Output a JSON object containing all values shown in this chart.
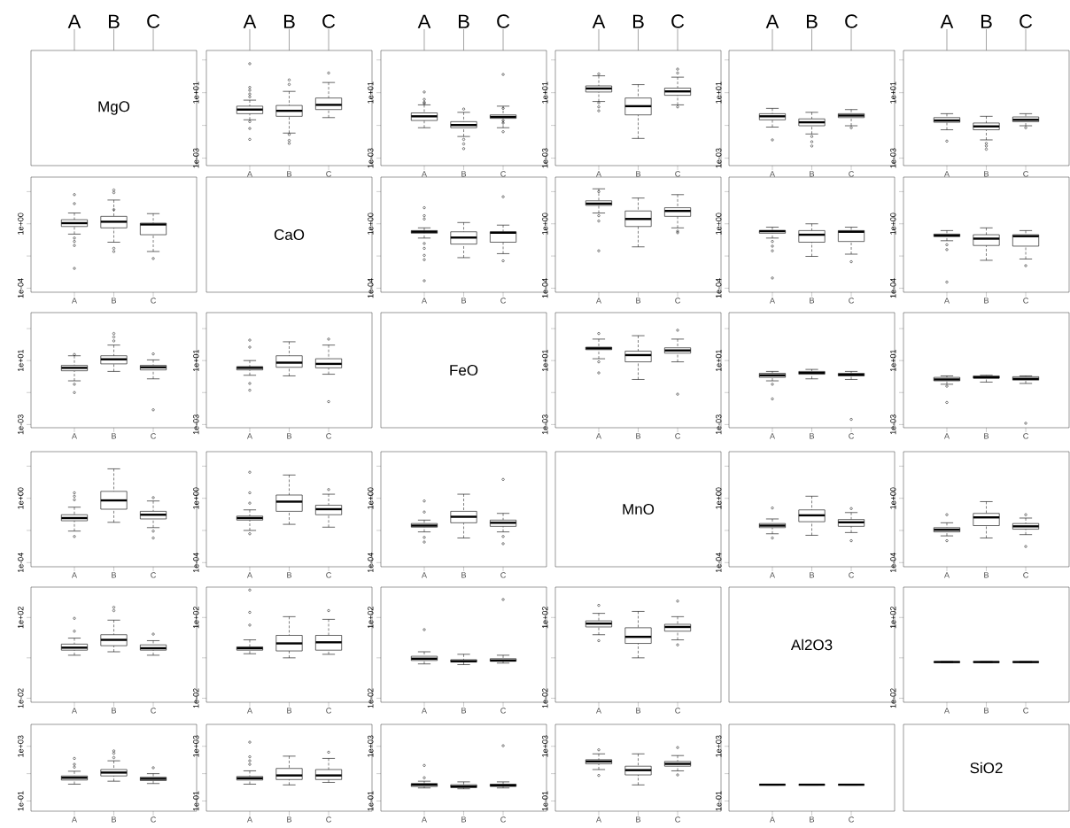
{
  "chart_data": [
    {
      "type": "other",
      "title": "MgO",
      "annotations": [
        "A",
        "B",
        "C"
      ]
    },
    {
      "type": "box",
      "log": true,
      "categories": [
        "A",
        "B",
        "C"
      ],
      "ylim": [
        0.00035,
        3800
      ],
      "yticks": [
        {
          "value": 1000,
          "label": null
        },
        {
          "value": 10,
          "label": "1e+01"
        },
        {
          "value": 0.1,
          "label": null
        },
        {
          "value": 0.001,
          "label": "1e-03"
        }
      ],
      "annotations": [
        "A",
        "B",
        "C"
      ],
      "boxes": [
        {
          "low": 0.22,
          "q1": 0.52,
          "median": 0.93,
          "q3": 1.5,
          "high": 3.5,
          "outliers": [
            590,
            21,
            14,
            8.3,
            5.6,
            0.17,
            0.065,
            0.014
          ]
        },
        {
          "low": 0.034,
          "q1": 0.36,
          "median": 0.78,
          "q3": 1.66,
          "high": 12,
          "outliers": [
            60,
            32,
            0.028,
            0.012,
            0.008
          ]
        },
        {
          "low": 0.3,
          "q1": 0.93,
          "median": 1.8,
          "q3": 4.7,
          "high": 42,
          "outliers": [
            160
          ]
        }
      ]
    },
    {
      "type": "box",
      "log": true,
      "categories": [
        "A",
        "B",
        "C"
      ],
      "ylim": [
        0.00035,
        3800
      ],
      "yticks": [
        {
          "value": 1000,
          "label": null
        },
        {
          "value": 10,
          "label": "1e+01"
        },
        {
          "value": 0.1,
          "label": null
        },
        {
          "value": 0.001,
          "label": "1e-03"
        }
      ],
      "annotations": [
        "A",
        "B",
        "C"
      ],
      "boxes": [
        {
          "low": 0.072,
          "q1": 0.2,
          "median": 0.36,
          "q3": 0.58,
          "high": 1.8,
          "outliers": [
            11,
            3.9,
            2.6,
            2.2
          ]
        },
        {
          "low": 0.021,
          "q1": 0.072,
          "median": 0.105,
          "q3": 0.17,
          "high": 0.63,
          "outliers": [
            1,
            0.014,
            0.0074,
            0.0038
          ]
        },
        {
          "low": 0.072,
          "q1": 0.27,
          "median": 0.33,
          "q3": 0.44,
          "high": 1.5,
          "outliers": [
            130,
            1.1,
            0.2,
            0.14,
            0.041
          ]
        }
      ]
    },
    {
      "type": "box",
      "log": true,
      "categories": [
        "A",
        "B",
        "C"
      ],
      "ylim": [
        0.00035,
        3800
      ],
      "yticks": [
        {
          "value": 1000,
          "label": null
        },
        {
          "value": 10,
          "label": "1e+01"
        },
        {
          "value": 0.1,
          "label": null
        },
        {
          "value": 0.001,
          "label": "1e-03"
        }
      ],
      "annotations": [
        "A",
        "B",
        "C"
      ],
      "boxes": [
        {
          "low": 2.9,
          "q1": 11,
          "median": 18,
          "q3": 26,
          "high": 107,
          "outliers": [
            140,
            2.4,
            1.35,
            0.78
          ]
        },
        {
          "low": 0.016,
          "q1": 0.44,
          "median": 1.5,
          "q3": 4.7,
          "high": 31
        },
        {
          "low": 1.8,
          "q1": 6.9,
          "median": 12,
          "q3": 19,
          "high": 89,
          "outliers": [
            275,
            160,
            1.35
          ]
        }
      ]
    },
    {
      "type": "box",
      "log": true,
      "categories": [
        "A",
        "B",
        "C"
      ],
      "ylim": [
        0.00035,
        3800
      ],
      "yticks": [
        {
          "value": 1000,
          "label": null
        },
        {
          "value": 10,
          "label": "1e+01"
        },
        {
          "value": 0.1,
          "label": null
        },
        {
          "value": 0.001,
          "label": "1e-03"
        }
      ],
      "annotations": [
        "A",
        "B",
        "C"
      ],
      "boxes": [
        {
          "low": 0.079,
          "q1": 0.22,
          "median": 0.36,
          "q3": 0.52,
          "high": 1.1,
          "outliers": [
            0.013
          ]
        },
        {
          "low": 0.03,
          "q1": 0.095,
          "median": 0.155,
          "q3": 0.25,
          "high": 0.63,
          "outliers": [
            0.021,
            0.01,
            0.0055
          ]
        },
        {
          "low": 0.095,
          "q1": 0.3,
          "median": 0.4,
          "q3": 0.52,
          "high": 0.93,
          "outliers": [
            0.072
          ]
        }
      ]
    },
    {
      "type": "box",
      "log": true,
      "categories": [
        "A",
        "B",
        "C"
      ],
      "ylim": [
        0.00035,
        3800
      ],
      "yticks": [
        {
          "value": 1000,
          "label": null
        },
        {
          "value": 10,
          "label": "1e+01"
        },
        {
          "value": 0.1,
          "label": null
        },
        {
          "value": 0.001,
          "label": "1e-03"
        }
      ],
      "annotations": [
        "A",
        "B",
        "C"
      ],
      "boxes": [
        {
          "low": 0.054,
          "q1": 0.155,
          "median": 0.2,
          "q3": 0.3,
          "high": 0.52,
          "outliers": [
            0.011
          ]
        },
        {
          "low": 0.013,
          "q1": 0.054,
          "median": 0.087,
          "q3": 0.14,
          "high": 0.36,
          "outliers": [
            0.008,
            0.0055,
            0.0035
          ]
        },
        {
          "low": 0.095,
          "q1": 0.17,
          "median": 0.22,
          "q3": 0.33,
          "high": 0.52,
          "outliers": [
            0.072
          ]
        }
      ]
    },
    {
      "type": "box",
      "log": true,
      "categories": [
        "A",
        "B",
        "C"
      ],
      "ylim": [
        5.6e-05,
        800
      ],
      "yticks": [
        {
          "value": 100,
          "label": null
        },
        {
          "value": 1,
          "label": "1e+00"
        },
        {
          "value": 0.01,
          "label": null
        },
        {
          "value": 0.0001,
          "label": "1e-04"
        }
      ],
      "boxes": [
        {
          "low": 0.23,
          "q1": 0.68,
          "median": 1.1,
          "q3": 1.8,
          "high": 4.7,
          "outliers": [
            65,
            18,
            0.13,
            0.08,
            0.045,
            0.0017
          ]
        },
        {
          "low": 0.072,
          "q1": 0.56,
          "median": 1.35,
          "q3": 2.9,
          "high": 30,
          "outliers": [
            126,
            87,
            7.6,
            0.03,
            0.019
          ]
        },
        {
          "low": 0.019,
          "q1": 0.21,
          "median": 0.91,
          "q3": 1.1,
          "high": 4.3,
          "outliers": [
            0.007
          ]
        }
      ]
    },
    {
      "type": "other",
      "title": "CaO"
    },
    {
      "type": "box",
      "log": true,
      "categories": [
        "A",
        "B",
        "C"
      ],
      "ylim": [
        5.6e-05,
        800
      ],
      "yticks": [
        {
          "value": 100,
          "label": null
        },
        {
          "value": 1,
          "label": "1e+00"
        },
        {
          "value": 0.01,
          "label": null
        },
        {
          "value": 0.0001,
          "label": "1e-04"
        }
      ],
      "boxes": [
        {
          "low": 0.13,
          "q1": 0.26,
          "median": 0.32,
          "q3": 0.38,
          "high": 0.56,
          "outliers": [
            10,
            3.2,
            2,
            0.06,
            0.03,
            0.011,
            0.0059,
            0.00029
          ]
        },
        {
          "low": 0.0079,
          "q1": 0.055,
          "median": 0.14,
          "q3": 0.32,
          "high": 1.2
        },
        {
          "low": 0.014,
          "q1": 0.072,
          "median": 0.28,
          "q3": 0.32,
          "high": 0.83,
          "outliers": [
            48,
            0.005
          ]
        }
      ]
    },
    {
      "type": "box",
      "log": true,
      "categories": [
        "A",
        "B",
        "C"
      ],
      "ylim": [
        5.6e-05,
        800
      ],
      "yticks": [
        {
          "value": 100,
          "label": null
        },
        {
          "value": 1,
          "label": "1e+00"
        },
        {
          "value": 0.01,
          "label": null
        },
        {
          "value": 0.0001,
          "label": "1e-04"
        }
      ],
      "boxes": [
        {
          "low": 4.7,
          "q1": 14,
          "median": 18,
          "q3": 27,
          "high": 150,
          "outliers": [
            100,
            3.2,
            1.5,
            0.021
          ]
        },
        {
          "low": 0.037,
          "q1": 0.68,
          "median": 2,
          "q3": 6.3,
          "high": 40
        },
        {
          "low": 0.56,
          "q1": 2.9,
          "median": 6.3,
          "q3": 10,
          "high": 65,
          "outliers": [
            0.35,
            0.28
          ]
        }
      ]
    },
    {
      "type": "box",
      "log": true,
      "categories": [
        "A",
        "B",
        "C"
      ],
      "ylim": [
        5.6e-05,
        800
      ],
      "yticks": [
        {
          "value": 100,
          "label": null
        },
        {
          "value": 1,
          "label": "1e+00"
        },
        {
          "value": 0.01,
          "label": null
        },
        {
          "value": 0.0001,
          "label": "1e-04"
        }
      ],
      "boxes": [
        {
          "low": 0.13,
          "q1": 0.26,
          "median": 0.35,
          "q3": 0.38,
          "high": 0.62,
          "outliers": [
            0.08,
            0.041,
            0.021,
            0.00043
          ]
        },
        {
          "low": 0.0095,
          "q1": 0.072,
          "median": 0.21,
          "q3": 0.38,
          "high": 1
        },
        {
          "low": 0.013,
          "q1": 0.08,
          "median": 0.32,
          "q3": 0.38,
          "high": 0.62,
          "outliers": [
            0.0044
          ]
        }
      ]
    },
    {
      "type": "box",
      "log": true,
      "categories": [
        "A",
        "B",
        "C"
      ],
      "ylim": [
        5.6e-05,
        800
      ],
      "yticks": [
        {
          "value": 100,
          "label": null
        },
        {
          "value": 1,
          "label": "1e+00"
        },
        {
          "value": 0.01,
          "label": null
        },
        {
          "value": 0.0001,
          "label": "1e-04"
        }
      ],
      "boxes": [
        {
          "low": 0.089,
          "q1": 0.16,
          "median": 0.19,
          "q3": 0.23,
          "high": 0.38,
          "outliers": [
            0.05,
            0.025,
            0.00024
          ]
        },
        {
          "low": 0.0054,
          "q1": 0.045,
          "median": 0.12,
          "q3": 0.21,
          "high": 0.56
        },
        {
          "low": 0.0065,
          "q1": 0.041,
          "median": 0.17,
          "q3": 0.21,
          "high": 0.38,
          "outliers": [
            0.0025
          ]
        }
      ]
    },
    {
      "type": "box",
      "log": true,
      "categories": [
        "A",
        "B",
        "C"
      ],
      "ylim": [
        0.00063,
        10000
      ],
      "yticks": [
        {
          "value": 1000,
          "label": null
        },
        {
          "value": 10,
          "label": "1e+01"
        },
        {
          "value": 0.1,
          "label": null
        },
        {
          "value": 0.001,
          "label": "1e-03"
        }
      ],
      "boxes": [
        {
          "low": 0.54,
          "q1": 2.3,
          "median": 3.5,
          "q3": 5,
          "high": 20,
          "outliers": [
            24,
            0.33,
            0.1
          ]
        },
        {
          "low": 2.1,
          "q1": 6.2,
          "median": 12,
          "q3": 20,
          "high": 93,
          "outliers": [
            490,
            300,
            170
          ]
        },
        {
          "low": 0.72,
          "q1": 2.6,
          "median": 3.8,
          "q3": 5,
          "high": 11,
          "outliers": [
            26,
            0.0083
          ]
        }
      ]
    },
    {
      "type": "box",
      "log": true,
      "categories": [
        "A",
        "B",
        "C"
      ],
      "ylim": [
        0.00063,
        10000
      ],
      "yticks": [
        {
          "value": 1000,
          "label": null
        },
        {
          "value": 10,
          "label": "1e+01"
        },
        {
          "value": 0.1,
          "label": null
        },
        {
          "value": 0.001,
          "label": "1e-03"
        }
      ],
      "boxes": [
        {
          "low": 1.2,
          "q1": 2.6,
          "median": 3.5,
          "q3": 4.2,
          "high": 10,
          "outliers": [
            190,
            69,
            0.37,
            0.14
          ]
        },
        {
          "low": 1.1,
          "q1": 3.8,
          "median": 7.4,
          "q3": 20,
          "high": 150
        },
        {
          "low": 1.4,
          "q1": 3.5,
          "median": 6.2,
          "q3": 13,
          "high": 93,
          "outliers": [
            220,
            0.027
          ]
        }
      ]
    },
    {
      "type": "other",
      "title": "FeO"
    },
    {
      "type": "box",
      "log": true,
      "categories": [
        "A",
        "B",
        "C"
      ],
      "ylim": [
        0.00063,
        10000
      ],
      "yticks": [
        {
          "value": 1000,
          "label": null
        },
        {
          "value": 10,
          "label": "1e+01"
        },
        {
          "value": 0.1,
          "label": null
        },
        {
          "value": 0.001,
          "label": "1e-03"
        }
      ],
      "boxes": [
        {
          "low": 13,
          "q1": 48,
          "median": 58,
          "q3": 69,
          "high": 220,
          "outliers": [
            490,
            8.3,
            1.7
          ]
        },
        {
          "low": 0.66,
          "q1": 8.3,
          "median": 22,
          "q3": 39,
          "high": 360
        },
        {
          "low": 8.3,
          "q1": 29,
          "median": 43,
          "q3": 63,
          "high": 220,
          "outliers": [
            790,
            0.079
          ]
        }
      ]
    },
    {
      "type": "box",
      "log": true,
      "categories": [
        "A",
        "B",
        "C"
      ],
      "ylim": [
        0.00063,
        10000
      ],
      "yticks": [
        {
          "value": 1000,
          "label": null
        },
        {
          "value": 10,
          "label": "1e+01"
        },
        {
          "value": 0.1,
          "label": null
        },
        {
          "value": 0.001,
          "label": "1e-03"
        }
      ],
      "boxes": [
        {
          "low": 0.54,
          "q1": 0.89,
          "median": 1.2,
          "q3": 1.6,
          "high": 2.1,
          "outliers": [
            0.33,
            0.04
          ]
        },
        {
          "low": 0.72,
          "q1": 1.4,
          "median": 1.7,
          "q3": 2.1,
          "high": 2.8
        },
        {
          "low": 0.66,
          "q1": 1.1,
          "median": 1.3,
          "q3": 1.6,
          "high": 2.1,
          "outliers": [
            0.0021
          ]
        }
      ]
    },
    {
      "type": "box",
      "log": true,
      "categories": [
        "A",
        "B",
        "C"
      ],
      "ylim": [
        0.00063,
        10000
      ],
      "yticks": [
        {
          "value": 1000,
          "label": null
        },
        {
          "value": 10,
          "label": "1e+01"
        },
        {
          "value": 0.1,
          "label": null
        },
        {
          "value": 0.001,
          "label": "1e-03"
        }
      ],
      "boxes": [
        {
          "low": 0.33,
          "q1": 0.54,
          "median": 0.66,
          "q3": 0.89,
          "high": 1.1,
          "outliers": [
            0.25,
            0.024
          ]
        },
        {
          "low": 0.45,
          "q1": 0.79,
          "median": 0.89,
          "q3": 1.1,
          "high": 1.2
        },
        {
          "low": 0.37,
          "q1": 0.6,
          "median": 0.72,
          "q3": 0.98,
          "high": 1.1,
          "outliers": [
            0.0012
          ]
        }
      ]
    },
    {
      "type": "box",
      "log": true,
      "categories": [
        "A",
        "B",
        "C"
      ],
      "ylim": [
        5.5e-05,
        800
      ],
      "yticks": [
        {
          "value": 100,
          "label": null
        },
        {
          "value": 1,
          "label": "1e+00"
        },
        {
          "value": 0.01,
          "label": null
        },
        {
          "value": 0.0001,
          "label": "1e-04"
        }
      ],
      "boxes": [
        {
          "low": 0.0091,
          "q1": 0.04,
          "median": 0.059,
          "q3": 0.095,
          "high": 0.28,
          "outliers": [
            2.2,
            1.35,
            0.81,
            0.0042
          ]
        },
        {
          "low": 0.032,
          "q1": 0.21,
          "median": 0.74,
          "q3": 2.7,
          "high": 68
        },
        {
          "low": 0.015,
          "q1": 0.052,
          "median": 0.095,
          "q3": 0.155,
          "high": 0.68,
          "outliers": [
            1.1,
            0.0091,
            0.0034
          ]
        }
      ]
    },
    {
      "type": "box",
      "log": true,
      "categories": [
        "A",
        "B",
        "C"
      ],
      "ylim": [
        5.5e-05,
        800
      ],
      "yticks": [
        {
          "value": 100,
          "label": null
        },
        {
          "value": 1,
          "label": "1e+00"
        },
        {
          "value": 0.01,
          "label": null
        },
        {
          "value": 0.0001,
          "label": "1e-04"
        }
      ],
      "boxes": [
        {
          "low": 0.01,
          "q1": 0.044,
          "median": 0.059,
          "q3": 0.078,
          "high": 0.19,
          "outliers": [
            42,
            2.2,
            0.5,
            0.0062
          ]
        },
        {
          "low": 0.024,
          "q1": 0.155,
          "median": 0.62,
          "q3": 1.6,
          "high": 28
        },
        {
          "low": 0.016,
          "q1": 0.095,
          "median": 0.21,
          "q3": 0.37,
          "high": 1.8,
          "outliers": [
            3.5
          ]
        }
      ]
    },
    {
      "type": "box",
      "log": true,
      "categories": [
        "A",
        "B",
        "C"
      ],
      "ylim": [
        5.5e-05,
        800
      ],
      "yticks": [
        {
          "value": 100,
          "label": null
        },
        {
          "value": 1,
          "label": "1e+00"
        },
        {
          "value": 0.01,
          "label": null
        },
        {
          "value": 0.0001,
          "label": "1e-04"
        }
      ],
      "boxes": [
        {
          "low": 0.0081,
          "q1": 0.016,
          "median": 0.02,
          "q3": 0.027,
          "high": 0.044,
          "outliers": [
            0.68,
            0.14,
            0.0037,
            0.0019
          ]
        },
        {
          "low": 0.0034,
          "q1": 0.03,
          "median": 0.071,
          "q3": 0.155,
          "high": 1.8
        },
        {
          "low": 0.0081,
          "q1": 0.018,
          "median": 0.03,
          "q3": 0.044,
          "high": 0.115,
          "outliers": [
            15,
            0.0042,
            0.0015
          ]
        }
      ]
    },
    {
      "type": "other",
      "title": "MnO"
    },
    {
      "type": "box",
      "log": true,
      "categories": [
        "A",
        "B",
        "C"
      ],
      "ylim": [
        5.5e-05,
        800
      ],
      "yticks": [
        {
          "value": 100,
          "label": null
        },
        {
          "value": 1,
          "label": "1e+00"
        },
        {
          "value": 0.01,
          "label": null
        },
        {
          "value": 0.0001,
          "label": "1e-04"
        }
      ],
      "boxes": [
        {
          "low": 0.0062,
          "q1": 0.015,
          "median": 0.02,
          "q3": 0.027,
          "high": 0.052,
          "outliers": [
            0.25,
            0.0034
          ]
        },
        {
          "low": 0.005,
          "q1": 0.035,
          "median": 0.087,
          "q3": 0.19,
          "high": 1.35
        },
        {
          "low": 0.0074,
          "q1": 0.018,
          "median": 0.032,
          "q3": 0.048,
          "high": 0.13,
          "outliers": [
            0.23,
            0.0023
          ]
        }
      ]
    },
    {
      "type": "box",
      "log": true,
      "categories": [
        "A",
        "B",
        "C"
      ],
      "ylim": [
        5.5e-05,
        800
      ],
      "yticks": [
        {
          "value": 100,
          "label": null
        },
        {
          "value": 1,
          "label": "1e+00"
        },
        {
          "value": 0.01,
          "label": null
        },
        {
          "value": 0.0001,
          "label": "1e-04"
        }
      ],
      "boxes": [
        {
          "low": 0.0046,
          "q1": 0.0081,
          "median": 0.011,
          "q3": 0.015,
          "high": 0.03,
          "outliers": [
            0.095,
            0.0023
          ]
        },
        {
          "low": 0.0034,
          "q1": 0.02,
          "median": 0.065,
          "q3": 0.115,
          "high": 0.62
        },
        {
          "low": 0.0055,
          "q1": 0.012,
          "median": 0.018,
          "q3": 0.027,
          "high": 0.059,
          "outliers": [
            0.095,
            0.001
          ]
        }
      ]
    },
    {
      "type": "box",
      "log": true,
      "categories": [
        "A",
        "B",
        "C"
      ],
      "ylim": [
        0.0063,
        3200
      ],
      "yticks": [
        {
          "value": 100,
          "label": "1e+02"
        },
        {
          "value": 1,
          "label": null
        },
        {
          "value": 0.01,
          "label": "1e-02"
        }
      ],
      "boxes": [
        {
          "low": 1.35,
          "q1": 2.4,
          "median": 3.2,
          "q3": 4.8,
          "high": 9.5,
          "outliers": [
            91,
            21
          ]
        },
        {
          "low": 2,
          "q1": 4,
          "median": 7.8,
          "q3": 14,
          "high": 74,
          "outliers": [
            320,
            220
          ]
        },
        {
          "low": 1.35,
          "q1": 2.4,
          "median": 3,
          "q3": 4.4,
          "high": 7.1,
          "outliers": [
            15
          ]
        }
      ]
    },
    {
      "type": "box",
      "log": true,
      "categories": [
        "A",
        "B",
        "C"
      ],
      "ylim": [
        0.0063,
        3200
      ],
      "yticks": [
        {
          "value": 100,
          "label": "1e+02"
        },
        {
          "value": 1,
          "label": null
        },
        {
          "value": 0.01,
          "label": "1e-02"
        }
      ],
      "boxes": [
        {
          "low": 1.6,
          "q1": 2.4,
          "median": 3,
          "q3": 3.5,
          "high": 7.8,
          "outliers": [
            2300,
            180,
            42
          ]
        },
        {
          "low": 1,
          "q1": 2.2,
          "median": 5.2,
          "q3": 13,
          "high": 110
        },
        {
          "low": 1.5,
          "q1": 2.4,
          "median": 5.9,
          "q3": 13,
          "high": 81,
          "outliers": [
            220
          ]
        }
      ]
    },
    {
      "type": "box",
      "log": true,
      "categories": [
        "A",
        "B",
        "C"
      ],
      "ylim": [
        0.0063,
        3200
      ],
      "yticks": [
        {
          "value": 100,
          "label": "1e+02"
        },
        {
          "value": 1,
          "label": null
        },
        {
          "value": 0.01,
          "label": "1e-02"
        }
      ],
      "boxes": [
        {
          "low": 0.5,
          "q1": 0.74,
          "median": 0.91,
          "q3": 1.2,
          "high": 2,
          "outliers": [
            25
          ]
        },
        {
          "low": 0.46,
          "q1": 0.62,
          "median": 0.68,
          "q3": 0.81,
          "high": 1.5
        },
        {
          "low": 0.55,
          "q1": 0.68,
          "median": 0.74,
          "q3": 0.91,
          "high": 1.35,
          "outliers": [
            780
          ]
        }
      ]
    },
    {
      "type": "box",
      "log": true,
      "categories": [
        "A",
        "B",
        "C"
      ],
      "ylim": [
        0.0063,
        3200
      ],
      "yticks": [
        {
          "value": 100,
          "label": "1e+02"
        },
        {
          "value": 1,
          "label": null
        },
        {
          "value": 0.01,
          "label": "1e-02"
        }
      ],
      "boxes": [
        {
          "low": 14,
          "q1": 34,
          "median": 50,
          "q3": 68,
          "high": 160,
          "outliers": [
            400,
            7.1
          ]
        },
        {
          "low": 1,
          "q1": 5.2,
          "median": 11,
          "q3": 31,
          "high": 200
        },
        {
          "low": 7.8,
          "q1": 21,
          "median": 34,
          "q3": 46,
          "high": 110,
          "outliers": [
            650,
            4.4
          ]
        }
      ]
    },
    {
      "type": "other",
      "title": "Al2O3"
    },
    {
      "type": "box",
      "log": true,
      "categories": [
        "A",
        "B",
        "C"
      ],
      "ylim": [
        0.0063,
        3200
      ],
      "yticks": [
        {
          "value": 100,
          "label": "1e+02"
        },
        {
          "value": 1,
          "label": null
        },
        {
          "value": 0.01,
          "label": "1e-02"
        }
      ],
      "boxes": [
        {
          "low": 0.58,
          "q1": 0.6,
          "median": 0.62,
          "q3": 0.64,
          "high": 0.66
        },
        {
          "low": 0.58,
          "q1": 0.6,
          "median": 0.62,
          "q3": 0.64,
          "high": 0.66
        },
        {
          "low": 0.58,
          "q1": 0.6,
          "median": 0.62,
          "q3": 0.64,
          "high": 0.66
        }
      ]
    },
    {
      "type": "box",
      "log": true,
      "categories": [
        "A",
        "B",
        "C"
      ],
      "ylim": [
        0.018,
        40000
      ],
      "yticks": [
        {
          "value": 1000,
          "label": "1e+03"
        },
        {
          "value": 10,
          "label": null
        },
        {
          "value": 0.1,
          "label": "1e-01"
        }
      ],
      "boxes": [
        {
          "low": 1.7,
          "q1": 3.4,
          "median": 5,
          "q3": 6.8,
          "high": 15,
          "outliers": [
            130,
            48,
            30
          ]
        },
        {
          "low": 2.8,
          "q1": 6.8,
          "median": 12,
          "q3": 20,
          "high": 87,
          "outliers": [
            460,
            310,
            150
          ]
        },
        {
          "low": 1.9,
          "q1": 3.1,
          "median": 4.2,
          "q3": 5.5,
          "high": 10,
          "outliers": [
            27
          ]
        }
      ]
    },
    {
      "type": "box",
      "log": true,
      "categories": [
        "A",
        "B",
        "C"
      ],
      "ylim": [
        0.018,
        40000
      ],
      "yticks": [
        {
          "value": 1000,
          "label": "1e+03"
        },
        {
          "value": 10,
          "label": null
        },
        {
          "value": 0.1,
          "label": "1e-01"
        }
      ],
      "boxes": [
        {
          "low": 1.7,
          "q1": 3.4,
          "median": 4.6,
          "q3": 6.2,
          "high": 16,
          "outliers": [
            2000,
            170,
            87,
            48
          ]
        },
        {
          "low": 1.5,
          "q1": 3.7,
          "median": 7.4,
          "q3": 24,
          "high": 190
        },
        {
          "low": 2.3,
          "q1": 3.7,
          "median": 7.4,
          "q3": 20,
          "high": 130,
          "outliers": [
            370
          ]
        }
      ]
    },
    {
      "type": "box",
      "log": true,
      "categories": [
        "A",
        "B",
        "C"
      ],
      "ylim": [
        0.018,
        40000
      ],
      "yticks": [
        {
          "value": 1000,
          "label": "1e+03"
        },
        {
          "value": 10,
          "label": null
        },
        {
          "value": 0.1,
          "label": "1e-01"
        }
      ],
      "boxes": [
        {
          "low": 0.9,
          "q1": 1.15,
          "median": 1.55,
          "q3": 1.9,
          "high": 2.8,
          "outliers": [
            40,
            5
          ]
        },
        {
          "low": 0.78,
          "q1": 0.95,
          "median": 1.15,
          "q3": 1.55,
          "high": 2.5
        },
        {
          "low": 0.9,
          "q1": 1.15,
          "median": 1.4,
          "q3": 1.7,
          "high": 2.5,
          "outliers": [
            1100
          ]
        }
      ]
    },
    {
      "type": "box",
      "log": true,
      "categories": [
        "A",
        "B",
        "C"
      ],
      "ylim": [
        0.018,
        40000
      ],
      "yticks": [
        {
          "value": 1000,
          "label": "1e+03"
        },
        {
          "value": 10,
          "label": null
        },
        {
          "value": 0.1,
          "label": "1e-01"
        }
      ],
      "boxes": [
        {
          "low": 20,
          "q1": 52,
          "median": 78,
          "q3": 105,
          "high": 280,
          "outliers": [
            550,
            7.4
          ]
        },
        {
          "low": 1.5,
          "q1": 8.1,
          "median": 18,
          "q3": 35,
          "high": 280
        },
        {
          "low": 16,
          "q1": 35,
          "median": 52,
          "q3": 78,
          "high": 210,
          "outliers": [
            810,
            8.1
          ]
        }
      ]
    },
    {
      "type": "box",
      "log": true,
      "categories": [
        "A",
        "B",
        "C"
      ],
      "ylim": [
        0.018,
        40000
      ],
      "yticks": [
        {
          "value": 1000,
          "label": "1e+03"
        },
        {
          "value": 10,
          "label": null
        },
        {
          "value": 0.1,
          "label": "1e-01"
        }
      ],
      "boxes": [
        {
          "low": 1.45,
          "q1": 1.5,
          "median": 1.55,
          "q3": 1.6,
          "high": 1.65
        },
        {
          "low": 1.45,
          "q1": 1.5,
          "median": 1.55,
          "q3": 1.6,
          "high": 1.65
        },
        {
          "low": 1.45,
          "q1": 1.5,
          "median": 1.55,
          "q3": 1.6,
          "high": 1.65
        }
      ]
    },
    {
      "type": "other",
      "title": "SiO2"
    }
  ]
}
